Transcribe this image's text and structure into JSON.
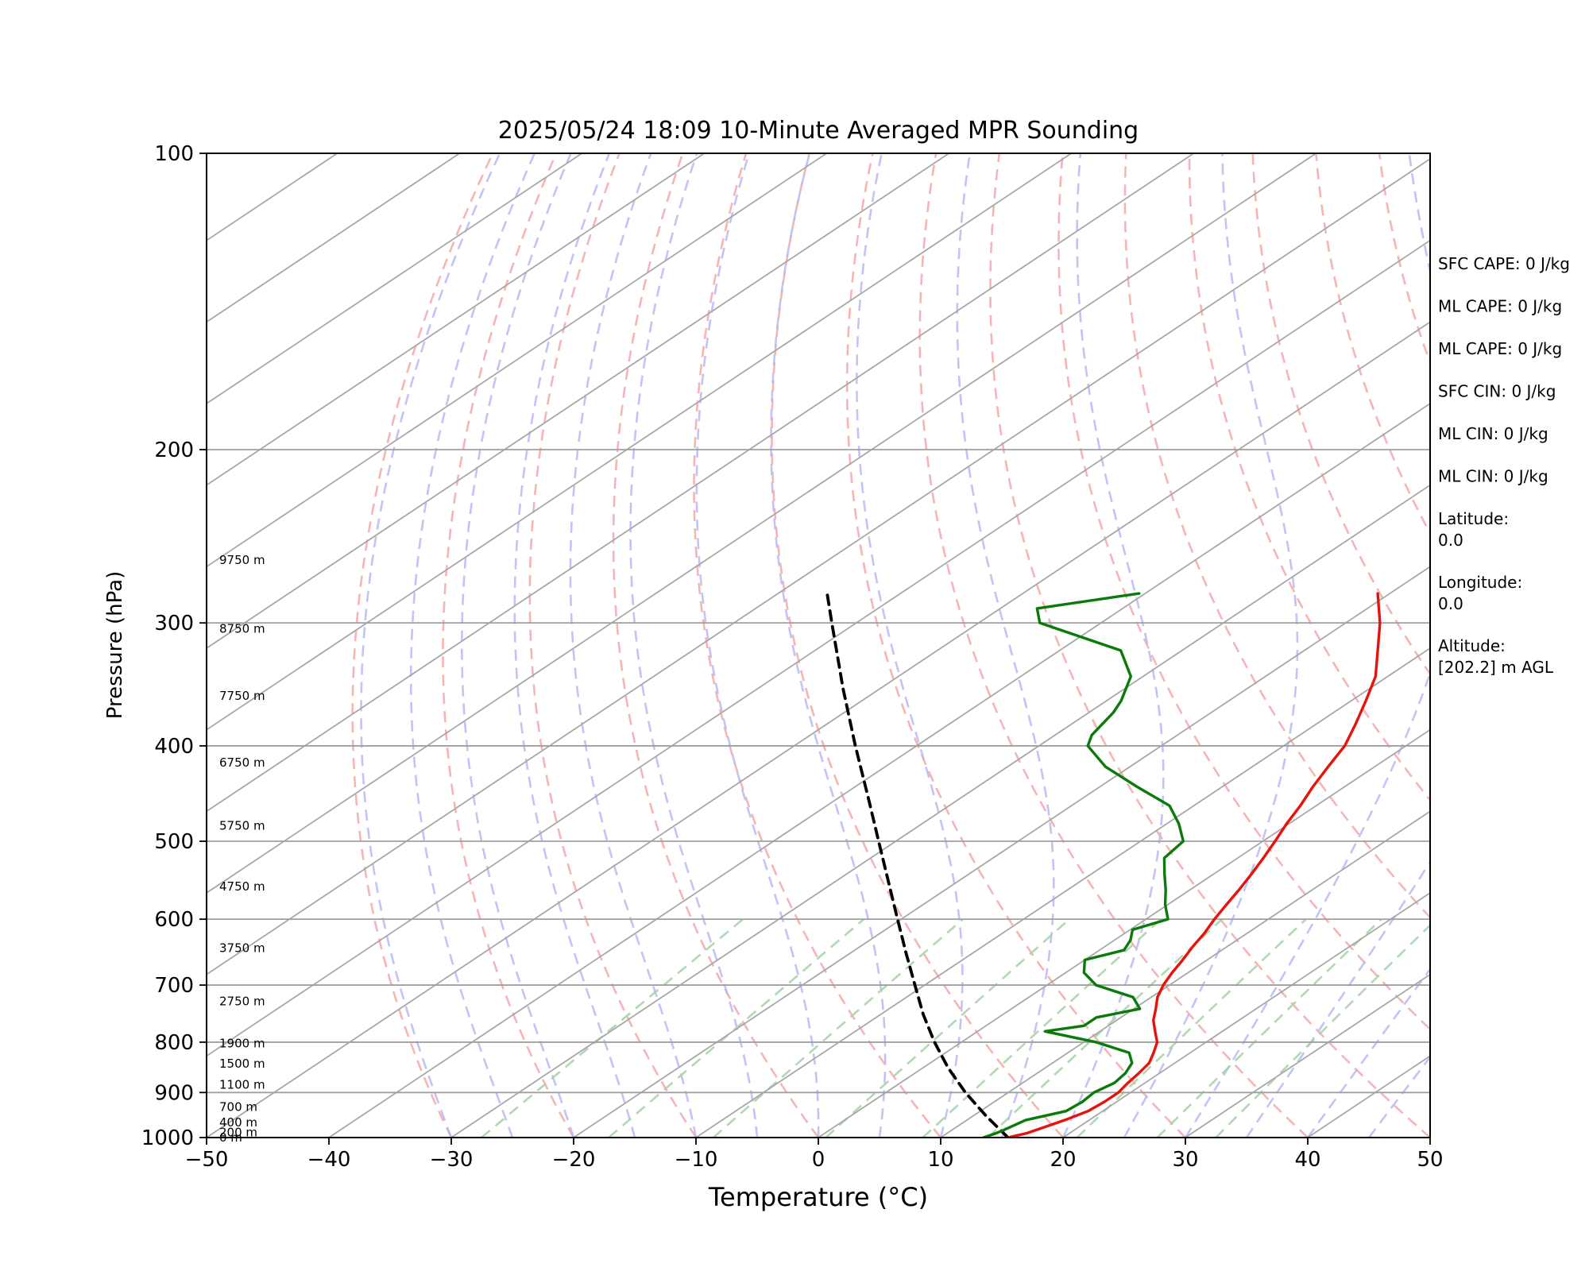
{
  "chart_data": {
    "type": "line",
    "title": "2025/05/24 18:09 10-Minute Averaged MPR Sounding",
    "xlabel": "Temperature (°C)",
    "ylabel": "Pressure (hPa)",
    "xlim": [
      -50,
      50
    ],
    "ylim": [
      1000,
      100
    ],
    "y_scale": "log",
    "x_ticks": [
      "−50",
      "−40",
      "−30",
      "−20",
      "−10",
      "0",
      "10",
      "20",
      "30",
      "40",
      "50"
    ],
    "y_ticks": [
      "1000",
      "900",
      "800",
      "700",
      "600",
      "500",
      "400",
      "300",
      "200",
      "100"
    ],
    "skew": true,
    "colors": {
      "temperature": "#e8120c",
      "dewpoint": "#0a7a0a",
      "parcel": "#000000",
      "isotherm": "#a8a8a8",
      "dry_adiabat": "#f4a8a8",
      "moist_adiabat": "#b8b8f4",
      "mixing_ratio": "#a8d4a8"
    },
    "series": [
      {
        "role": "temperature",
        "points": [
          [
            1000,
            15.5
          ],
          [
            990,
            16.5
          ],
          [
            980,
            17.0
          ],
          [
            960,
            18.0
          ],
          [
            940,
            18.8
          ],
          [
            920,
            19.0
          ],
          [
            900,
            19.0
          ],
          [
            880,
            18.6
          ],
          [
            860,
            18.3
          ],
          [
            840,
            17.9
          ],
          [
            820,
            17.0
          ],
          [
            800,
            16.0
          ],
          [
            780,
            14.5
          ],
          [
            760,
            13.0
          ],
          [
            740,
            11.8
          ],
          [
            720,
            10.5
          ],
          [
            700,
            9.5
          ],
          [
            680,
            8.7
          ],
          [
            660,
            8.0
          ],
          [
            640,
            7.2
          ],
          [
            620,
            6.5
          ],
          [
            600,
            5.6
          ],
          [
            580,
            4.8
          ],
          [
            560,
            4.0
          ],
          [
            540,
            3.1
          ],
          [
            520,
            2.1
          ],
          [
            500,
            1.0
          ],
          [
            480,
            -0.2
          ],
          [
            460,
            -1.3
          ],
          [
            440,
            -2.6
          ],
          [
            420,
            -3.8
          ],
          [
            400,
            -5.0
          ],
          [
            380,
            -6.8
          ],
          [
            360,
            -8.8
          ],
          [
            340,
            -11.0
          ],
          [
            320,
            -14.0
          ],
          [
            300,
            -17.2
          ],
          [
            280,
            -21.0
          ]
        ]
      },
      {
        "role": "dewpoint",
        "points": [
          [
            1000,
            13.5
          ],
          [
            990,
            14.0
          ],
          [
            980,
            14.3
          ],
          [
            960,
            14.8
          ],
          [
            940,
            17.0
          ],
          [
            920,
            17.2
          ],
          [
            900,
            17.0
          ],
          [
            880,
            17.5
          ],
          [
            860,
            17.2
          ],
          [
            840,
            16.5
          ],
          [
            820,
            15.0
          ],
          [
            800,
            11.0
          ],
          [
            780,
            5.5
          ],
          [
            770,
            8.0
          ],
          [
            755,
            8.0
          ],
          [
            740,
            10.5
          ],
          [
            720,
            8.5
          ],
          [
            700,
            4.0
          ],
          [
            680,
            1.5
          ],
          [
            660,
            0.0
          ],
          [
            645,
            2.0
          ],
          [
            630,
            1.3
          ],
          [
            615,
            0.2
          ],
          [
            600,
            1.8
          ],
          [
            580,
            -0.2
          ],
          [
            560,
            -2.0
          ],
          [
            540,
            -4.0
          ],
          [
            520,
            -6.0
          ],
          [
            500,
            -6.5
          ],
          [
            480,
            -9.0
          ],
          [
            460,
            -12.0
          ],
          [
            440,
            -17.0
          ],
          [
            420,
            -22.0
          ],
          [
            400,
            -26.0
          ],
          [
            390,
            -27.0
          ],
          [
            370,
            -28.0
          ],
          [
            360,
            -28.8
          ],
          [
            340,
            -31.0
          ],
          [
            320,
            -35.0
          ],
          [
            300,
            -45.0
          ],
          [
            290,
            -47.0
          ],
          [
            280,
            -40.5
          ]
        ]
      },
      {
        "role": "parcel",
        "points": [
          [
            1000,
            15.5
          ],
          [
            950,
            11.0
          ],
          [
            900,
            6.5
          ],
          [
            850,
            2.1
          ],
          [
            800,
            -2.2
          ],
          [
            750,
            -6.5
          ],
          [
            700,
            -10.8
          ],
          [
            650,
            -15.4
          ],
          [
            600,
            -20.3
          ],
          [
            550,
            -25.6
          ],
          [
            500,
            -31.4
          ],
          [
            450,
            -37.8
          ],
          [
            400,
            -45.0
          ],
          [
            350,
            -53.0
          ],
          [
            300,
            -62.0
          ],
          [
            280,
            -66.0
          ]
        ]
      }
    ],
    "height_labels": [
      {
        "p": 1000,
        "text": "0 m"
      },
      {
        "p": 988,
        "text": "200 m"
      },
      {
        "p": 965,
        "text": "400 m"
      },
      {
        "p": 931,
        "text": "700 m"
      },
      {
        "p": 884,
        "text": "1100 m"
      },
      {
        "p": 841,
        "text": "1500 m"
      },
      {
        "p": 802,
        "text": "1900 m"
      },
      {
        "p": 727,
        "text": "2750 m"
      },
      {
        "p": 642,
        "text": "3750 m"
      },
      {
        "p": 556,
        "text": "4750 m"
      },
      {
        "p": 482,
        "text": "5750 m"
      },
      {
        "p": 416,
        "text": "6750 m"
      },
      {
        "p": 356,
        "text": "7750 m"
      },
      {
        "p": 304,
        "text": "8750 m"
      },
      {
        "p": 259,
        "text": "9750 m"
      }
    ],
    "stats": [
      {
        "label": "SFC CAPE: 0 J/kg"
      },
      {
        "label": "ML CAPE: 0 J/kg"
      },
      {
        "label": "ML CAPE: 0 J/kg"
      },
      {
        "label": "SFC CIN: 0 J/kg"
      },
      {
        "label": "ML CIN: 0 J/kg"
      },
      {
        "label": "ML CIN: 0 J/kg"
      },
      {
        "label": "Latitude:",
        "value": "0.0"
      },
      {
        "label": "Longitude:",
        "value": "0.0"
      },
      {
        "label": "Altitude:",
        "value": "[202.2] m AGL"
      }
    ]
  }
}
